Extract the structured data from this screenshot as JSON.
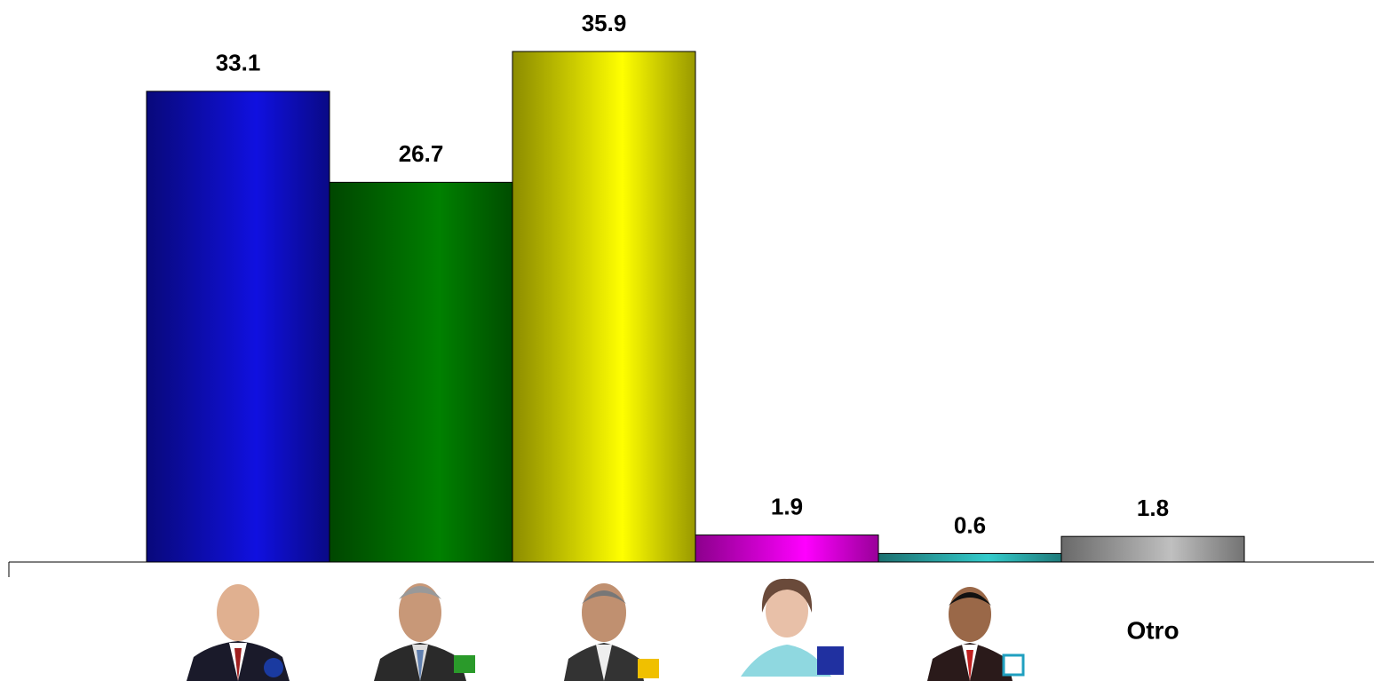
{
  "chart_data": {
    "type": "bar",
    "categories": [
      null,
      null,
      null,
      null,
      null,
      "Otro"
    ],
    "values": [
      33.1,
      26.7,
      35.9,
      1.9,
      0.6,
      1.8
    ],
    "colors": [
      "#1010e0",
      "#008000",
      "#ffff00",
      "#ff00ff",
      "#33cccc",
      "#c0c0c0"
    ]
  }
}
